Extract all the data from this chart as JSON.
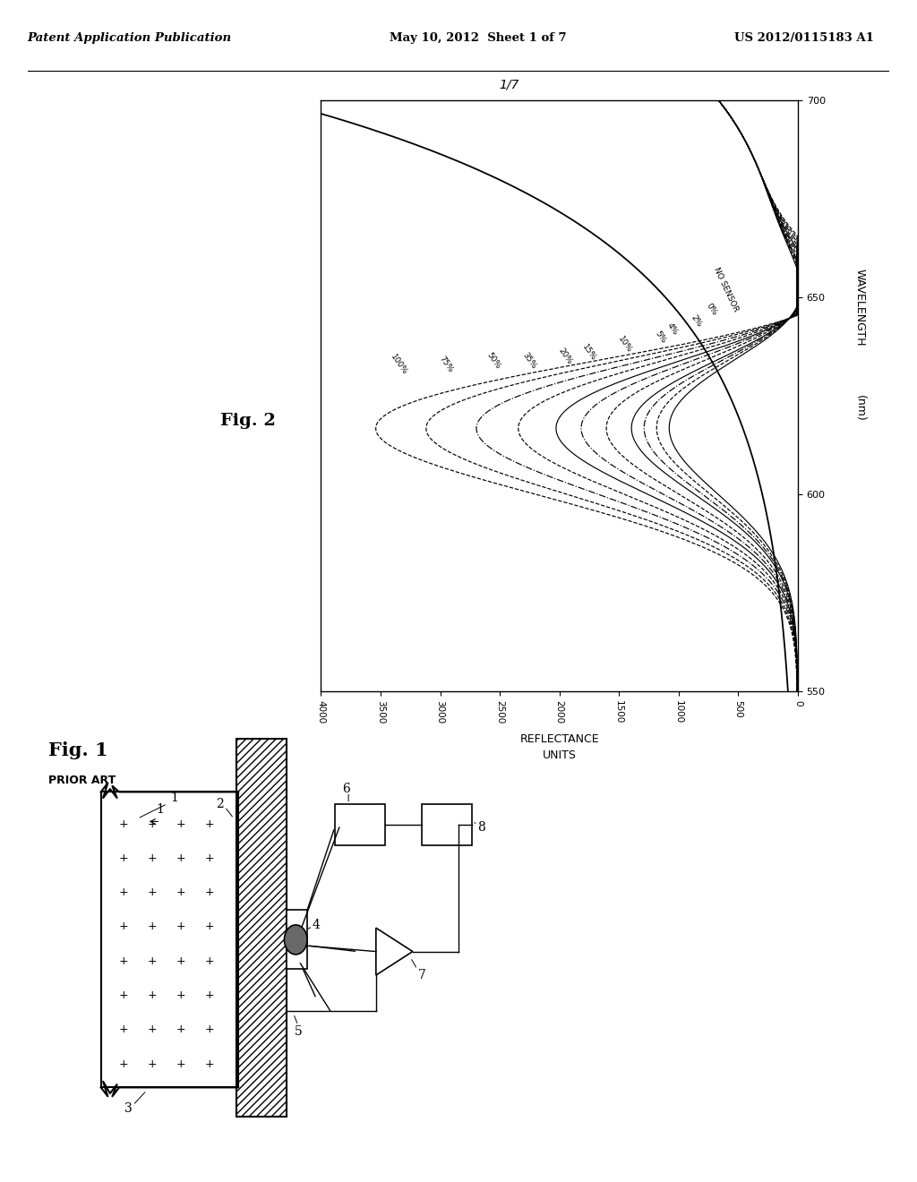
{
  "header_left": "Patent Application Publication",
  "header_center": "May 10, 2012  Sheet 1 of 7",
  "header_right": "US 2012/0115183 A1",
  "fig2_label": "Fig. 2",
  "fig2_number": "1/7",
  "fig1_label": "Fig. 1",
  "fig1_sublabel": "PRIOR ART",
  "wavelength_label": "WAVELENGTH",
  "wavelength_unit": "(nm)",
  "reflectance_label": "REFLECTANCE\nUNITS",
  "curve_labels": [
    "100%",
    "75%",
    "50%",
    "35%",
    "20%",
    "15%",
    "10%",
    "5%",
    "4%",
    "2%",
    "0%",
    "NO SENSOR"
  ],
  "y_ticks": [
    550,
    600,
    650,
    700
  ],
  "x_ticks_vals": [
    4000,
    3500,
    3000,
    2500,
    2000,
    1500,
    1000,
    500,
    0
  ],
  "x_ticks_labels": [
    "4000",
    "3500",
    "3000",
    "2500",
    "2000",
    "1500",
    "1000",
    "500",
    "0"
  ],
  "background_color": "#ffffff"
}
